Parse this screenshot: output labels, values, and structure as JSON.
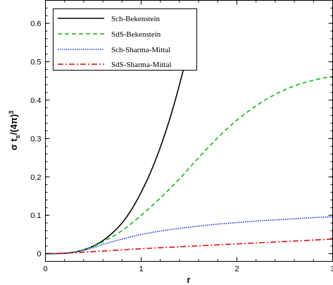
{
  "chart_data": {
    "type": "line",
    "xlabel": "r",
    "ylabel": "σ t",
    "ylabel_sub": "s",
    "ylabel_tail": "/(4π)",
    "ylabel_sup": "3",
    "xlim": [
      0,
      3
    ],
    "ylim": [
      -0.02,
      0.66
    ],
    "x_ticks": [
      0,
      1,
      2,
      3
    ],
    "x_tick_labels": [
      "0",
      "1",
      "2",
      "3"
    ],
    "y_ticks": [
      0,
      0.1,
      0.2,
      0.3,
      0.4,
      0.5,
      0.6
    ],
    "y_tick_labels": [
      "0",
      "0.1",
      "0.2",
      "0.3",
      "0.4",
      "0.5",
      "0.6"
    ],
    "grid": false,
    "legend_position": "top-left",
    "series": [
      {
        "name": "Sch-Bekenstein",
        "color": "#000000",
        "dash": "solid",
        "x": [
          0,
          0.1,
          0.2,
          0.3,
          0.4,
          0.5,
          0.6,
          0.7,
          0.8,
          0.9,
          1.0,
          1.1,
          1.2,
          1.3,
          1.4,
          1.5,
          1.57
        ],
        "y": [
          0,
          0.0003,
          0.001,
          0.004,
          0.01,
          0.02,
          0.034,
          0.054,
          0.08,
          0.115,
          0.16,
          0.213,
          0.277,
          0.352,
          0.44,
          0.54,
          0.62
        ]
      },
      {
        "name": "SdS-Bekenstein",
        "color": "#19b219",
        "dash": "dashed",
        "x": [
          0,
          0.1,
          0.2,
          0.3,
          0.4,
          0.5,
          0.6,
          0.8,
          1.0,
          1.2,
          1.4,
          1.6,
          1.8,
          2.0,
          2.2,
          2.4,
          2.6,
          2.8,
          3.0
        ],
        "y": [
          0,
          0.0003,
          0.001,
          0.004,
          0.01,
          0.019,
          0.031,
          0.06,
          0.1,
          0.145,
          0.195,
          0.25,
          0.302,
          0.348,
          0.385,
          0.415,
          0.437,
          0.452,
          0.462
        ]
      },
      {
        "name": "Sch-Sharma-Mittal",
        "color": "#1f2ee6",
        "dash": "dotted",
        "x": [
          0,
          0.1,
          0.2,
          0.3,
          0.4,
          0.5,
          0.6,
          0.8,
          1.0,
          1.2,
          1.4,
          1.6,
          1.8,
          2.0,
          2.2,
          2.4,
          2.6,
          2.8,
          3.0
        ],
        "y": [
          0,
          0.0003,
          0.001,
          0.004,
          0.009,
          0.016,
          0.024,
          0.038,
          0.05,
          0.059,
          0.066,
          0.072,
          0.077,
          0.081,
          0.085,
          0.088,
          0.091,
          0.094,
          0.096
        ]
      },
      {
        "name": "SdS-Sharma-Mittal",
        "color": "#d60f0f",
        "dash": "dashdot",
        "x": [
          0,
          0.2,
          0.4,
          0.6,
          0.8,
          1.0,
          1.2,
          1.4,
          1.6,
          1.8,
          2.0,
          2.2,
          2.4,
          2.6,
          2.8,
          3.0
        ],
        "y": [
          0,
          0.0015,
          0.004,
          0.007,
          0.01,
          0.013,
          0.0155,
          0.018,
          0.0205,
          0.023,
          0.0255,
          0.028,
          0.0305,
          0.033,
          0.0355,
          0.038
        ]
      }
    ]
  }
}
